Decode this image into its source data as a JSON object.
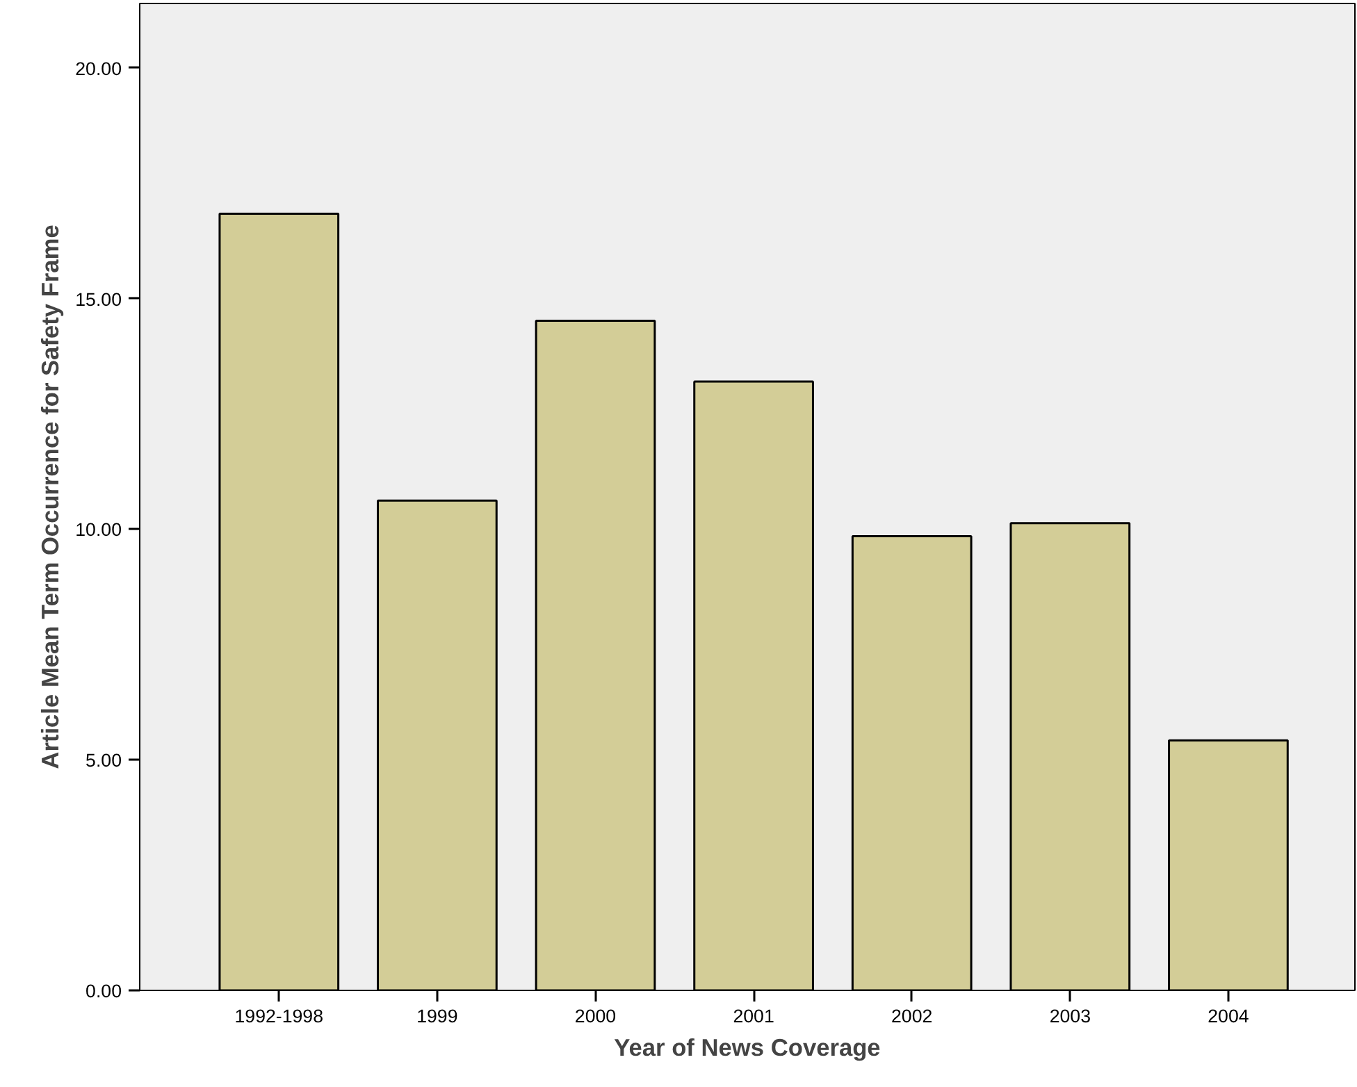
{
  "chart_data": {
    "type": "bar",
    "xlabel": "Year of News Coverage",
    "ylabel": "Article Mean Term Occurrence for Safety Frame",
    "categories": [
      "1992-1998",
      "1999",
      "2000",
      "2001",
      "2002",
      "2003",
      "2004"
    ],
    "values": [
      16.84,
      10.62,
      14.52,
      13.2,
      9.85,
      10.13,
      5.42
    ],
    "color": "#d3cd97",
    "ylim": [
      0,
      21.4
    ],
    "yticks": [
      {
        "value": 0,
        "label": "0.00"
      },
      {
        "value": 5,
        "label": "5.00"
      },
      {
        "value": 10,
        "label": "10.00"
      },
      {
        "value": 15,
        "label": "15.00"
      },
      {
        "value": 20,
        "label": "20.00"
      }
    ],
    "grid": false
  }
}
